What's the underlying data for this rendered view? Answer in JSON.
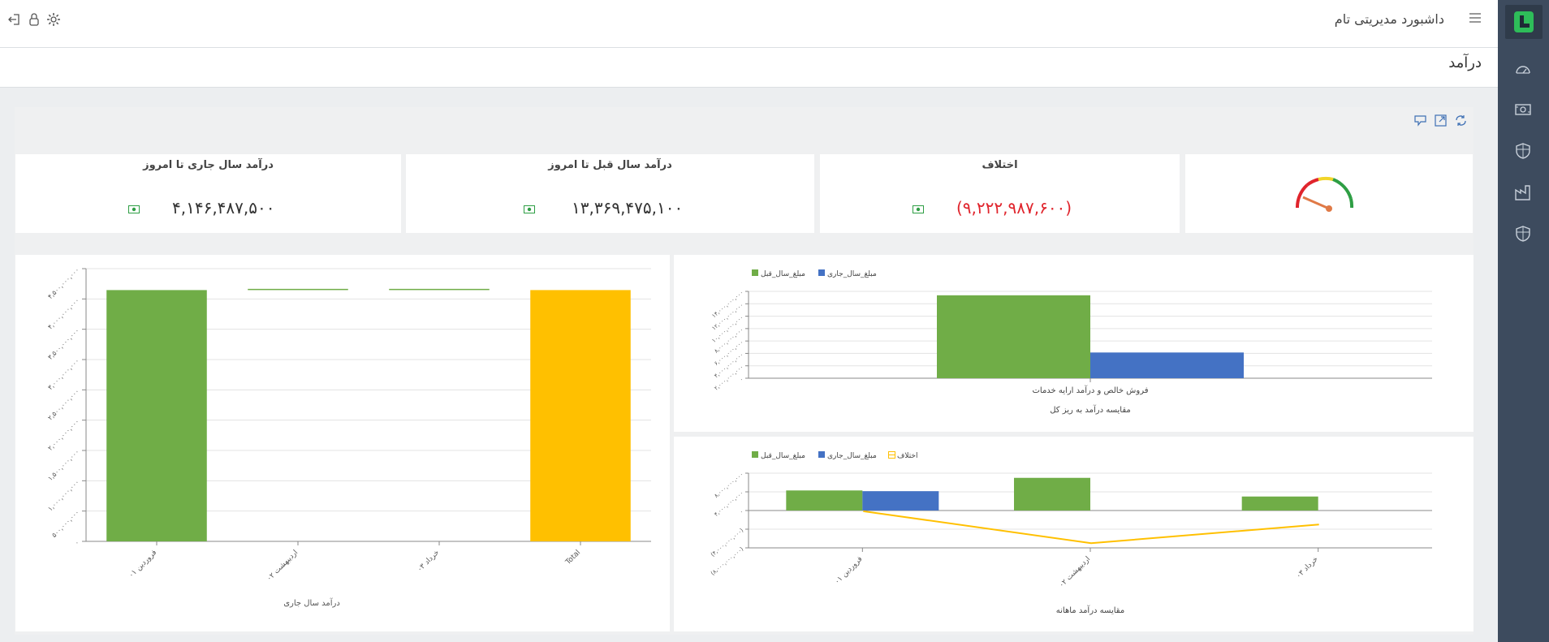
{
  "header": {
    "app_title": "داشبورد مدیریتی تام"
  },
  "page": {
    "title": "درآمد"
  },
  "sidebar": {
    "items": [
      {
        "icon": "gauge-icon"
      },
      {
        "icon": "money-icon"
      },
      {
        "icon": "shield-icon"
      },
      {
        "icon": "factory-icon"
      },
      {
        "icon": "shield-icon"
      }
    ]
  },
  "kpi": {
    "current_year": {
      "title": "درآمد سال جاری تا امروز",
      "value": "۴,۱۴۶,۴۸۷,۵۰۰"
    },
    "previous_year": {
      "title": "درآمد سال قبل تا امروز",
      "value": "۱۳,۳۶۹,۴۷۵,۱۰۰"
    },
    "difference": {
      "title": "اختلاف",
      "value": "(۹,۲۲۲,۹۸۷,۶۰۰)"
    }
  },
  "colors": {
    "green": "#70ad47",
    "blue": "#4472c4",
    "yellow": "#ffc000",
    "red": "#e0242c",
    "sidebar": "#3d4b5e"
  },
  "chart_data": [
    {
      "type": "bar",
      "xlabel": "درآمد سال جاری",
      "categories": [
        "فروردین ۰۱",
        "اردیبهشت ۰۲",
        "خرداد ۰۳",
        "Total"
      ],
      "y_ticks": [
        "۰",
        "۵۰۰,۰۰۰,۰۰۰",
        "۱,۰۰۰,۰۰۰,۰۰۰",
        "۱,۵۰۰,۰۰۰,۰۰۰",
        "۲,۰۰۰,۰۰۰,۰۰۰",
        "۲,۵۰۰,۰۰۰,۰۰۰",
        "۳,۰۰۰,۰۰۰,۰۰۰",
        "۳,۵۰۰,۰۰۰,۰۰۰",
        "۴,۰۰۰,۰۰۰,۰۰۰",
        "۴,۵۰۰,۰۰۰,۰۰۰"
      ],
      "ylim": [
        0,
        4500000000
      ],
      "values": [
        4146487500,
        0,
        0,
        4146487500
      ],
      "waterfall_start": [
        0,
        4146487500,
        4146487500,
        0
      ],
      "colors": [
        "#70ad47",
        "#70ad47",
        "#70ad47",
        "#ffc000"
      ]
    },
    {
      "type": "bar",
      "xlabel": "مقایسه درآمد به ریز کل",
      "categories": [
        "فروش خالص و درآمد ارایه خدمات"
      ],
      "legend": [
        "مبلغ_سال_قبل",
        "مبلغ_سال_جاری"
      ],
      "series": [
        {
          "name": "مبلغ_سال_قبل",
          "values": [
            13369475100
          ],
          "color": "#70ad47"
        },
        {
          "name": "مبلغ_سال_جاری",
          "values": [
            4146487500
          ],
          "color": "#4472c4"
        }
      ],
      "y_ticks": [
        "۰",
        "۲,۰۰۰,۰۰۰,۰۰۰",
        "۴,۰۰۰,۰۰۰,۰۰۰",
        "۶,۰۰۰,۰۰۰,۰۰۰",
        "۸,۰۰۰,۰۰۰,۰۰۰",
        "۱۰,۰۰۰,۰۰۰,۰۰۰",
        "۱۲,۰۰۰,۰۰۰,۰۰۰",
        "۱۴,۰۰۰,۰۰۰,۰۰۰"
      ],
      "ylim": [
        0,
        14000000000
      ]
    },
    {
      "type": "bar",
      "xlabel": "مقایسه درآمد ماهانه",
      "categories": [
        "فروردین ۰۱",
        "اردیبهشت ۰۲",
        "خرداد ۰۳"
      ],
      "legend": [
        "مبلغ_سال_قبل",
        "مبلغ_سال_جاری",
        "اختلاف"
      ],
      "series": [
        {
          "name": "مبلغ_سال_قبل",
          "values": [
            4300000000,
            7000000000,
            3000000000
          ],
          "color": "#70ad47"
        },
        {
          "name": "مبلغ_سال_جاری",
          "values": [
            4146487500,
            0,
            0
          ],
          "color": "#4472c4"
        },
        {
          "name": "اختلاف",
          "type": "line",
          "values": [
            -150000000,
            -7000000000,
            -3000000000
          ],
          "color": "#ffc000"
        }
      ],
      "y_ticks": [
        "(۸,۰۰۰,۰۰۰,۰۰۰)",
        "(۴,۰۰۰,۰۰۰,۰۰۰)",
        "۰",
        "۴,۰۰۰,۰۰۰,۰۰۰",
        "۸,۰۰۰,۰۰۰,۰۰۰"
      ],
      "ylim": [
        -8000000000,
        8000000000
      ]
    }
  ]
}
